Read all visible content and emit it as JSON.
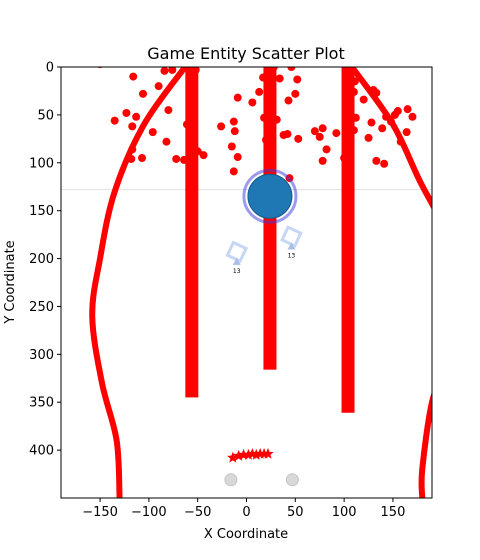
{
  "chart_data": {
    "type": "scatter",
    "title": "Game Entity Scatter Plot",
    "xlabel": "X Coordinate",
    "ylabel": "Y Coordinate",
    "xlim": [
      -190,
      190
    ],
    "ylim": [
      450,
      0
    ],
    "x_ticks": [
      -150,
      -100,
      -50,
      0,
      50,
      100,
      150
    ],
    "y_ticks": [
      0,
      50,
      100,
      150,
      200,
      250,
      300,
      350,
      400
    ],
    "grid": false,
    "colors": {
      "red": "#ff0000",
      "blue": "#1f77b4",
      "ring": "#3a3adf",
      "light_blue": "#c6d6f5",
      "gray": "#d8d8d8",
      "hline": "#e0e0e0"
    },
    "horizontal_line_y": 128,
    "boundary_curves": [
      {
        "name": "left-boundary",
        "points": [
          [
            -63,
            0
          ],
          [
            -105,
            60
          ],
          [
            -135,
            130
          ],
          [
            -150,
            200
          ],
          [
            -158,
            260
          ],
          [
            -148,
            330
          ],
          [
            -133,
            390
          ],
          [
            -130,
            450
          ]
        ]
      },
      {
        "name": "right-boundary",
        "points": [
          [
            108,
            0
          ],
          [
            150,
            60
          ],
          [
            178,
            120
          ],
          [
            205,
            170
          ]
        ]
      },
      {
        "name": "right-lower-boundary",
        "points": [
          [
            205,
            310
          ],
          [
            190,
            350
          ],
          [
            180,
            420
          ],
          [
            180,
            450
          ]
        ]
      }
    ],
    "bars": [
      {
        "name": "bar-left",
        "x": -56,
        "y_top": 0,
        "y_bottom": 345
      },
      {
        "name": "bar-center",
        "x": 24,
        "y_top": 0,
        "y_bottom": 316
      },
      {
        "name": "bar-right",
        "x": 104,
        "y_top": 0,
        "y_bottom": 361
      }
    ],
    "red_points": [
      [
        -150,
        -3
      ],
      [
        -116,
        10
      ],
      [
        -84,
        4
      ],
      [
        -76,
        3
      ],
      [
        -60,
        0
      ],
      [
        -52,
        3
      ],
      [
        -106,
        28
      ],
      [
        -90,
        20
      ],
      [
        -80,
        45
      ],
      [
        -123,
        48
      ],
      [
        -135,
        56
      ],
      [
        -113,
        52
      ],
      [
        -117,
        62
      ],
      [
        -96,
        68
      ],
      [
        -82,
        78
      ],
      [
        -117,
        86
      ],
      [
        -118,
        96
      ],
      [
        -107,
        95
      ],
      [
        -72,
        96
      ],
      [
        -61,
        60
      ],
      [
        -64,
        97
      ],
      [
        -55,
        70
      ],
      [
        -50,
        88
      ],
      [
        -44,
        92
      ],
      [
        -26,
        62
      ],
      [
        -13,
        57
      ],
      [
        -12,
        67
      ],
      [
        -15,
        83
      ],
      [
        -9,
        94
      ],
      [
        -13,
        109
      ],
      [
        -9,
        32
      ],
      [
        6,
        37
      ],
      [
        13,
        26
      ],
      [
        17,
        11
      ],
      [
        28,
        0
      ],
      [
        34,
        12
      ],
      [
        43,
        35
      ],
      [
        46,
        0
      ],
      [
        52,
        13
      ],
      [
        50,
        28
      ],
      [
        18,
        53
      ],
      [
        31,
        55
      ],
      [
        38,
        71
      ],
      [
        53,
        75
      ],
      [
        42,
        70
      ],
      [
        70,
        67
      ],
      [
        75,
        73
      ],
      [
        78,
        64
      ],
      [
        82,
        86
      ],
      [
        92,
        69
      ],
      [
        78,
        98
      ],
      [
        100,
        95
      ],
      [
        111,
        15
      ],
      [
        110,
        26
      ],
      [
        120,
        34
      ],
      [
        130,
        24
      ],
      [
        133,
        27
      ],
      [
        128,
        58
      ],
      [
        112,
        53
      ],
      [
        110,
        66
      ],
      [
        125,
        74
      ],
      [
        139,
        64
      ],
      [
        143,
        52
      ],
      [
        148,
        57
      ],
      [
        155,
        46
      ],
      [
        152,
        50
      ],
      [
        165,
        44
      ],
      [
        170,
        52
      ],
      [
        164,
        68
      ],
      [
        158,
        78
      ],
      [
        133,
        98
      ],
      [
        141,
        101
      ],
      [
        44,
        116
      ],
      [
        20,
        76
      ]
    ],
    "blue_circle": {
      "x": 24,
      "y": 135,
      "label": ""
    },
    "markers": [
      {
        "name": "marker-left",
        "x": -10,
        "y": 193,
        "label": "13"
      },
      {
        "name": "marker-right",
        "x": 46,
        "y": 177,
        "label": "13"
      }
    ],
    "stars": [
      [
        -14,
        408
      ],
      [
        -8,
        406
      ],
      [
        -3,
        405
      ],
      [
        2,
        405
      ],
      [
        6,
        404
      ],
      [
        10,
        405
      ],
      [
        14,
        404
      ],
      [
        18,
        404
      ],
      [
        22,
        404
      ]
    ],
    "gray_circles": [
      [
        -16,
        431
      ],
      [
        47,
        431
      ]
    ]
  }
}
